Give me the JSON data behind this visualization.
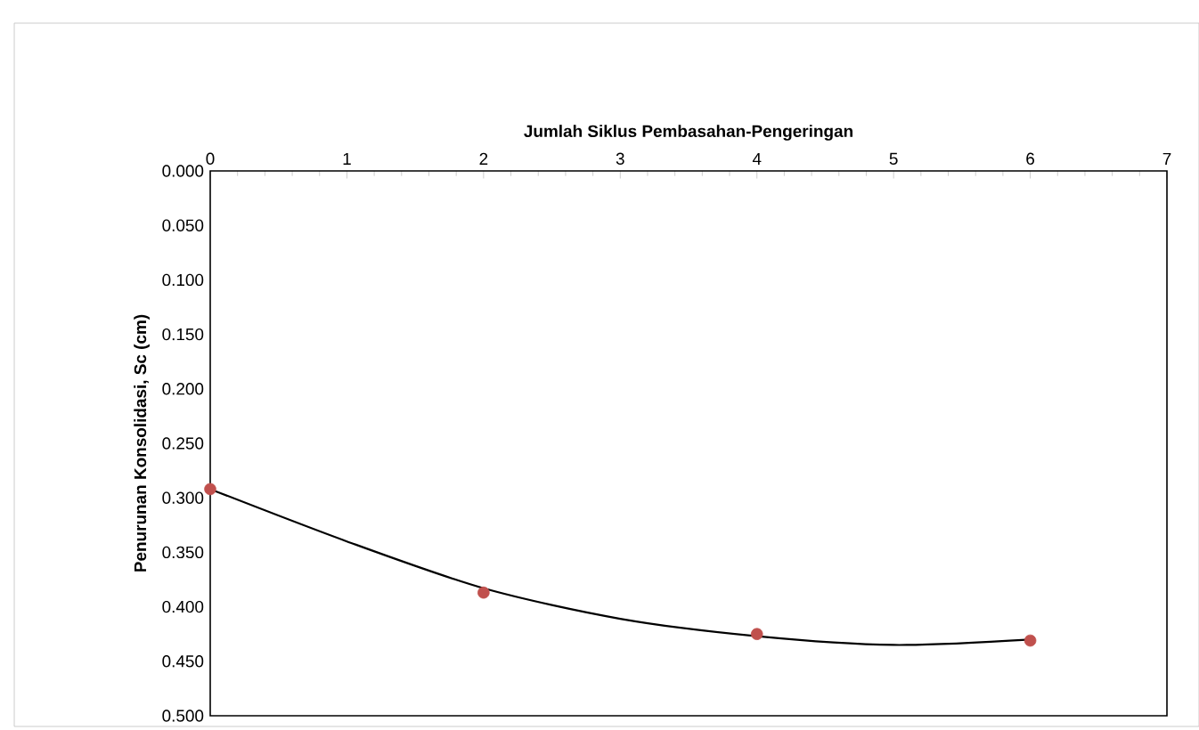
{
  "chart_data": {
    "type": "scatter",
    "xlabel": "Jumlah Siklus Pembasahan-Pengeringan",
    "ylabel": "Penurunan Konsolidasi, Sc (cm)",
    "x": [
      0,
      2,
      4,
      6
    ],
    "series": [
      {
        "color": "#c0504d",
        "marker": "circle",
        "values": [
          0.292,
          0.387,
          0.425,
          0.431
        ]
      },
      {
        "type": "line",
        "color": "#000000",
        "marker": "none",
        "line_style": "solid",
        "x": [
          0,
          1,
          2,
          3,
          4,
          5,
          6
        ],
        "values": [
          0.292,
          0.34,
          0.383,
          0.411,
          0.427,
          0.435,
          0.43
        ]
      }
    ],
    "xlim": [
      0,
      7
    ],
    "xticks": [
      0,
      1,
      2,
      3,
      4,
      5,
      6,
      7
    ],
    "ylim": [
      0.5,
      0
    ],
    "yticks": [
      {
        "value": 0,
        "label": "0.000"
      },
      {
        "value": 0.05,
        "label": "0.050"
      },
      {
        "value": 0.1,
        "label": "0.100"
      },
      {
        "value": 0.15,
        "label": "0.150"
      },
      {
        "value": 0.2,
        "label": "0.200"
      },
      {
        "value": 0.25,
        "label": "0.250"
      },
      {
        "value": 0.3,
        "label": "0.300"
      },
      {
        "value": 0.35,
        "label": "0.350"
      },
      {
        "value": 0.4,
        "label": "0.400"
      },
      {
        "value": 0.45,
        "label": "0.450"
      },
      {
        "value": 0.5,
        "label": "0.500"
      }
    ],
    "grid": false
  }
}
